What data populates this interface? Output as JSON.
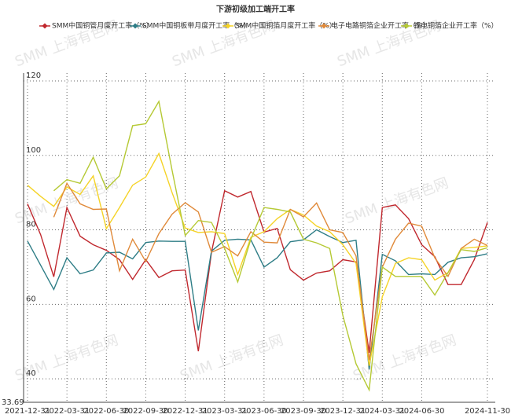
{
  "chart_data": {
    "type": "line",
    "title": "下游初级加工端开工率",
    "watermark": "SMM 上海有色网",
    "categories": [
      "2021-12-31",
      null,
      null,
      "2022-03-31",
      null,
      null,
      "2022-06-30",
      null,
      null,
      "2022-09-30",
      null,
      null,
      "2022-12-31",
      null,
      null,
      "2023-03-31",
      null,
      null,
      "2023-06-30",
      null,
      null,
      "2023-09-30",
      null,
      null,
      "2023-12-31",
      null,
      null,
      "2024-03-31",
      null,
      null,
      "2024-06-30",
      null,
      null,
      null,
      null,
      "2024-11-30"
    ],
    "ylim": [
      33.69,
      120
    ],
    "yticks": [
      33.69,
      40,
      60,
      80,
      100,
      120
    ],
    "grid": true,
    "legend": "top",
    "series": [
      {
        "name": "SMM中国铜管月度开工率（%）",
        "color": "#c0282e",
        "values": [
          87,
          78.7,
          67.4,
          86,
          78.3,
          76,
          74.5,
          72,
          66.7,
          72,
          67.2,
          69,
          69.2,
          47.4,
          74,
          90.5,
          88.8,
          90.3,
          79.4,
          80.4,
          69.3,
          66.5,
          68.4,
          69,
          72,
          71.4,
          47,
          86,
          86.7,
          83,
          76,
          72.8,
          65.3,
          65.3,
          72,
          82
        ]
      },
      {
        "name": "SMM中国铜板带月度开工率（%）",
        "color": "#2e7d86",
        "values": [
          77,
          70.5,
          64,
          72.5,
          68.2,
          69.2,
          73.8,
          74,
          72.2,
          76.6,
          77,
          76.9,
          76.9,
          53,
          74.3,
          77.2,
          77.5,
          77.3,
          70,
          72.5,
          76.8,
          77.3,
          80,
          78.2,
          76.6,
          77.2,
          42.5,
          73.4,
          71.7,
          68,
          68.2,
          68,
          71.3,
          72.5,
          72.8,
          73.6
        ]
      },
      {
        "name": "SMM中国铜箔月度开工率（%）",
        "color": "#f5d327",
        "values": [
          92,
          89,
          86.3,
          91.5,
          89.5,
          94.5,
          80.3,
          86,
          92,
          94.2,
          100.5,
          90,
          80.5,
          79.3,
          79.5,
          79,
          68,
          78,
          79.5,
          83,
          85.5,
          84,
          81,
          79.5,
          76,
          71,
          43.5,
          62,
          71,
          72.5,
          72,
          66.5,
          68.5,
          75,
          75.3,
          75.7
        ]
      },
      {
        "name": "电子电路铜箔企业开工率（%）",
        "color": "#e08a3a",
        "values": [
          null,
          null,
          83.4,
          92.5,
          87,
          85.5,
          85.6,
          69,
          77.5,
          71.5,
          79,
          84.2,
          87.3,
          84.8,
          74,
          75.5,
          73,
          79.5,
          76.7,
          76.5,
          85.5,
          83.5,
          87.2,
          80,
          79.3,
          73,
          45,
          70,
          77.5,
          81.8,
          81,
          72.5,
          67.5,
          75,
          77.5,
          75.8
        ]
      },
      {
        "name": "锂电铜箔企业开工率（%）",
        "color": "#b5c934",
        "values": [
          null,
          null,
          90.5,
          93.5,
          92.5,
          99.5,
          91,
          94.5,
          108,
          108.5,
          114.5,
          96,
          78.5,
          82.5,
          82,
          75,
          66,
          77.5,
          86,
          85.5,
          84.8,
          77.5,
          76.5,
          75,
          57,
          44,
          37,
          70,
          67.5,
          67.5,
          67.5,
          62.5,
          68.5,
          74.7,
          74.2,
          75.2
        ]
      }
    ]
  }
}
